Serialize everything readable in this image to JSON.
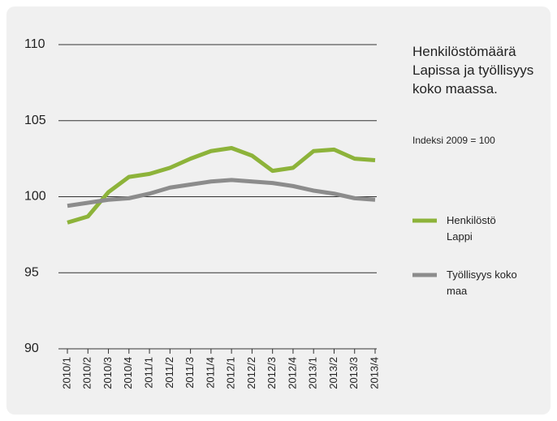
{
  "chart_data": {
    "type": "line",
    "title": "Henkilöstömäärä Lapissa ja työllisyys koko maassa.",
    "subtitle": "Indeksi 2009  = 100",
    "categories": [
      "2010/1",
      "2010/2",
      "2010/3",
      "2010/4",
      "2011/1",
      "2011/2",
      "2011/3",
      "2011/4",
      "2012/1",
      "2012/2",
      "2012/3",
      "2012/4",
      "2013/1",
      "2013/2",
      "2013/3",
      "2013/4"
    ],
    "series": [
      {
        "name": "Henkilöstö Lappi",
        "color": "#8db33a",
        "values": [
          98.3,
          98.7,
          100.3,
          101.3,
          101.5,
          101.9,
          102.5,
          103.0,
          103.2,
          102.7,
          101.7,
          101.9,
          103.0,
          103.1,
          102.5,
          102.4
        ]
      },
      {
        "name": "Työllisyys koko maa",
        "color": "#8c8c8c",
        "values": [
          99.4,
          99.6,
          99.8,
          99.9,
          100.2,
          100.6,
          100.8,
          101.0,
          101.1,
          101.0,
          100.9,
          100.7,
          100.4,
          100.2,
          99.9,
          99.8
        ]
      }
    ],
    "ylim": [
      90,
      110
    ],
    "yticks": [
      90,
      95,
      100,
      105,
      110
    ],
    "grid": true,
    "legend": "right"
  }
}
